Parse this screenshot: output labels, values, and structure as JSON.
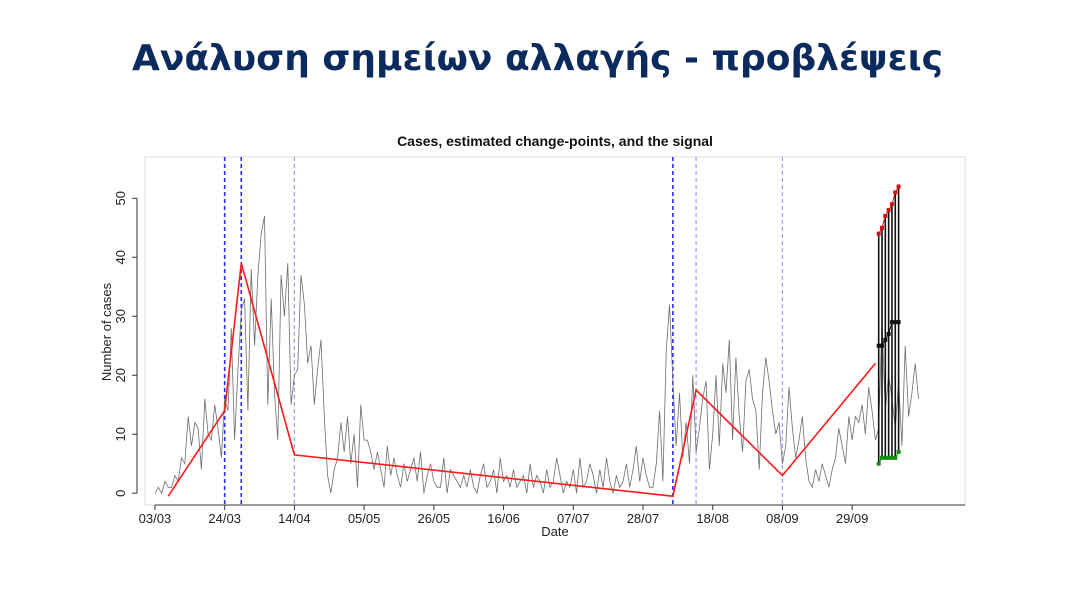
{
  "slide": {
    "title": "Ανάλυση σημείων αλλαγής - προβλέψεις"
  },
  "chart_data": {
    "type": "line",
    "title": "Cases, estimated change-points, and the signal",
    "xlabel": "Date",
    "ylabel": "Number of cases",
    "x_tick_labels": [
      "03/03",
      "24/03",
      "14/04",
      "05/05",
      "26/05",
      "16/06",
      "07/07",
      "28/07",
      "18/08",
      "08/09",
      "29/09"
    ],
    "x_tick_days": [
      0,
      21,
      42,
      63,
      84,
      105,
      126,
      147,
      168,
      189,
      210
    ],
    "xlim_days": [
      -3,
      244
    ],
    "ylim": [
      -2,
      57
    ],
    "y_ticks": [
      0,
      10,
      20,
      30,
      40,
      50
    ],
    "grid": false,
    "colors": {
      "cases": "#6e6e6e",
      "signal": "#ff1a1a",
      "changepoint": "#2b2bff",
      "changepoint_light": "#9a9aff",
      "interval": "#111111",
      "upper": "#d01010",
      "lower": "#109010"
    },
    "series": [
      {
        "values_by_day": [
          0,
          1,
          0,
          2,
          1,
          1,
          3,
          2,
          6,
          5,
          13,
          8,
          12,
          11,
          4,
          16,
          10,
          9,
          15,
          11,
          6,
          16,
          14,
          28,
          9,
          21,
          31,
          33,
          14,
          38,
          25,
          37,
          44,
          47,
          15,
          33,
          17,
          9,
          37,
          30,
          39,
          15,
          20,
          21,
          37,
          32,
          22,
          25,
          15,
          21,
          26,
          13,
          3,
          0,
          4,
          6,
          12,
          7,
          13,
          5,
          10,
          1,
          15,
          9,
          9,
          7,
          4,
          7,
          4,
          1,
          8,
          3,
          6,
          3,
          1,
          5,
          2,
          4,
          6,
          2,
          7,
          0,
          3,
          5,
          2,
          1,
          1,
          6,
          0,
          4,
          3,
          2,
          1,
          3,
          1,
          4,
          1,
          0,
          3,
          5,
          1,
          2,
          4,
          0,
          6,
          2,
          3,
          1,
          4,
          1,
          2,
          3,
          0,
          5,
          1,
          3,
          2,
          0,
          4,
          1,
          2,
          6,
          3,
          0,
          2,
          1,
          4,
          0,
          6,
          1,
          2,
          5,
          3,
          0,
          4,
          1,
          6,
          2,
          0,
          3,
          1,
          2,
          5,
          1,
          4,
          8,
          2,
          6,
          3,
          1,
          1,
          5,
          14,
          2,
          24,
          32,
          19,
          8,
          17,
          6,
          12,
          5,
          20,
          7,
          11,
          16,
          19,
          4,
          10,
          20,
          8,
          22,
          17,
          26,
          9,
          23,
          13,
          7,
          19,
          21,
          16,
          14,
          4,
          17,
          23,
          19,
          14,
          10,
          12,
          5,
          8,
          18,
          11,
          6,
          9,
          13,
          6,
          2,
          1,
          4,
          2,
          5,
          3,
          1,
          4,
          6,
          11,
          8,
          5,
          13,
          9,
          13,
          12,
          15,
          10,
          18,
          14,
          9,
          11,
          29,
          14,
          20,
          16,
          11,
          19,
          8,
          25,
          13,
          17,
          22,
          16
        ]
      }
    ],
    "change_points_days": [
      21,
      26,
      42,
      156,
      163,
      189
    ],
    "signal_days": [
      4,
      21,
      26,
      42,
      156,
      163,
      189,
      217
    ],
    "signal_values": [
      -0.5,
      14,
      39,
      6.5,
      -0.5,
      17.5,
      3,
      22
    ],
    "forecast_days": [
      218,
      219,
      220,
      221,
      222,
      223,
      224
    ],
    "forecast_lower": [
      5,
      6,
      6,
      6,
      6,
      6,
      7
    ],
    "forecast_median": [
      25,
      25,
      26,
      27,
      29,
      29,
      29
    ],
    "forecast_upper": [
      44,
      45,
      47,
      48,
      49,
      51,
      52
    ]
  }
}
